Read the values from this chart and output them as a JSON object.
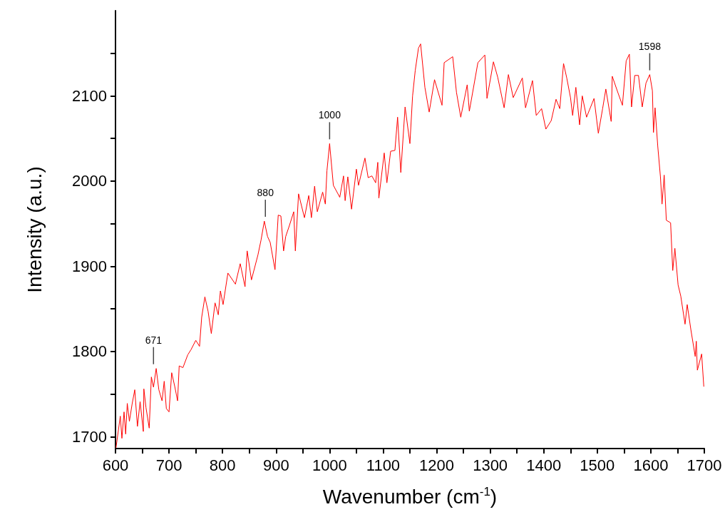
{
  "chart_data": {
    "type": "line",
    "xlabel": "Wavenumber (cm$^{-1}$)",
    "ylabel": "Intensity (a.u.)",
    "xlim": [
      600,
      1700
    ],
    "ylim": [
      1686,
      2200
    ],
    "xticks": [
      600,
      {
        "value": 650,
        "label": null
      },
      700,
      {
        "value": 750,
        "label": null
      },
      800,
      {
        "value": 850,
        "label": null
      },
      900,
      {
        "value": 950,
        "label": null
      },
      1000,
      {
        "value": 1050,
        "label": null
      },
      1100,
      {
        "value": 1150,
        "label": null
      },
      1200,
      {
        "value": 1250,
        "label": null
      },
      1300,
      {
        "value": 1350,
        "label": null
      },
      1400,
      {
        "value": 1450,
        "label": null
      },
      1500,
      {
        "value": 1550,
        "label": null
      },
      1600,
      {
        "value": 1650,
        "label": null
      },
      1700
    ],
    "yticks": [
      1700,
      {
        "value": 1750,
        "label": null
      },
      1800,
      {
        "value": 1850,
        "label": null
      },
      1900,
      {
        "value": 1950,
        "label": null
      },
      2000,
      {
        "value": 2050,
        "label": null
      },
      2100,
      {
        "value": 2150,
        "label": null
      }
    ],
    "grid": false,
    "marker": "none",
    "line_style": "solid",
    "annotations": [
      {
        "text": "671",
        "x": 671,
        "y": 1780
      },
      {
        "text": "880",
        "x": 880,
        "y": 1953
      },
      {
        "text": "1000",
        "x": 1000,
        "y": 2044
      },
      {
        "text": "1598",
        "x": 1598,
        "y": 2125
      }
    ],
    "series": [
      {
        "color": "#ff0000",
        "x": [
          601,
          609,
          612,
          616,
          619,
          622,
          626,
          631,
          636,
          641,
          646,
          652,
          653,
          657,
          663,
          667,
          671,
          676,
          681,
          687,
          691,
          695,
          700,
          705,
          711,
          716,
          719,
          726,
          735,
          741,
          750,
          757,
          761,
          767,
          773,
          779,
          786,
          792,
          796,
          801,
          810,
          824,
          833,
          842,
          846,
          854,
          866,
          872,
          878,
          884,
          889,
          898,
          904,
          909,
          914,
          918,
          925,
          933,
          936,
          942,
          953,
          961,
          966,
          972,
          977,
          987,
          992,
          995,
          1000,
          1007,
          1019,
          1026,
          1029,
          1034,
          1041,
          1050,
          1054,
          1066,
          1072,
          1079,
          1086,
          1090,
          1092,
          1102,
          1107,
          1114,
          1122,
          1127,
          1133,
          1141,
          1150,
          1155,
          1160,
          1166,
          1170,
          1178,
          1186,
          1196,
          1210,
          1214,
          1230,
          1237,
          1245,
          1257,
          1261,
          1277,
          1290,
          1294,
          1306,
          1314,
          1326,
          1334,
          1343,
          1360,
          1366,
          1379,
          1386,
          1396,
          1404,
          1414,
          1423,
          1430,
          1437,
          1443,
          1450,
          1454,
          1460,
          1467,
          1472,
          1480,
          1494,
          1502,
          1510,
          1516,
          1526,
          1528,
          1539,
          1547,
          1554,
          1560,
          1564,
          1570,
          1577,
          1584,
          1591,
          1598,
          1603,
          1605,
          1608,
          1613,
          1618,
          1621,
          1625,
          1629,
          1637,
          1641,
          1645,
          1651,
          1656,
          1664,
          1668,
          1675,
          1683,
          1685,
          1687,
          1695,
          1699
        ],
        "values": [
          1687,
          1724,
          1698,
          1729,
          1703,
          1739,
          1718,
          1738,
          1755,
          1712,
          1741,
          1706,
          1756,
          1734,
          1710,
          1770,
          1758,
          1780,
          1755,
          1742,
          1765,
          1733,
          1729,
          1775,
          1758,
          1742,
          1783,
          1781,
          1796,
          1802,
          1813,
          1806,
          1840,
          1864,
          1847,
          1821,
          1857,
          1843,
          1871,
          1855,
          1892,
          1879,
          1903,
          1876,
          1918,
          1884,
          1913,
          1931,
          1953,
          1935,
          1928,
          1896,
          1960,
          1959,
          1918,
          1935,
          1948,
          1964,
          1918,
          1985,
          1957,
          1983,
          1957,
          1994,
          1964,
          1987,
          1973,
          2012,
          2044,
          1995,
          1981,
          2006,
          1977,
          2005,
          1967,
          2014,
          1995,
          2027,
          2004,
          2006,
          1998,
          2022,
          1980,
          2033,
          1998,
          2035,
          2036,
          2075,
          2010,
          2087,
          2044,
          2100,
          2130,
          2156,
          2161,
          2110,
          2081,
          2119,
          2089,
          2139,
          2146,
          2104,
          2075,
          2113,
          2082,
          2139,
          2148,
          2097,
          2140,
          2122,
          2086,
          2125,
          2098,
          2121,
          2086,
          2118,
          2077,
          2085,
          2061,
          2071,
          2096,
          2085,
          2138,
          2121,
          2098,
          2077,
          2110,
          2066,
          2100,
          2075,
          2097,
          2056,
          2085,
          2108,
          2070,
          2123,
          2103,
          2089,
          2141,
          2149,
          2087,
          2124,
          2124,
          2087,
          2115,
          2125,
          2106,
          2057,
          2086,
          2041,
          2005,
          1973,
          2007,
          1954,
          1951,
          1895,
          1921,
          1878,
          1865,
          1832,
          1855,
          1825,
          1794,
          1812,
          1778,
          1797,
          1759
        ]
      }
    ]
  }
}
